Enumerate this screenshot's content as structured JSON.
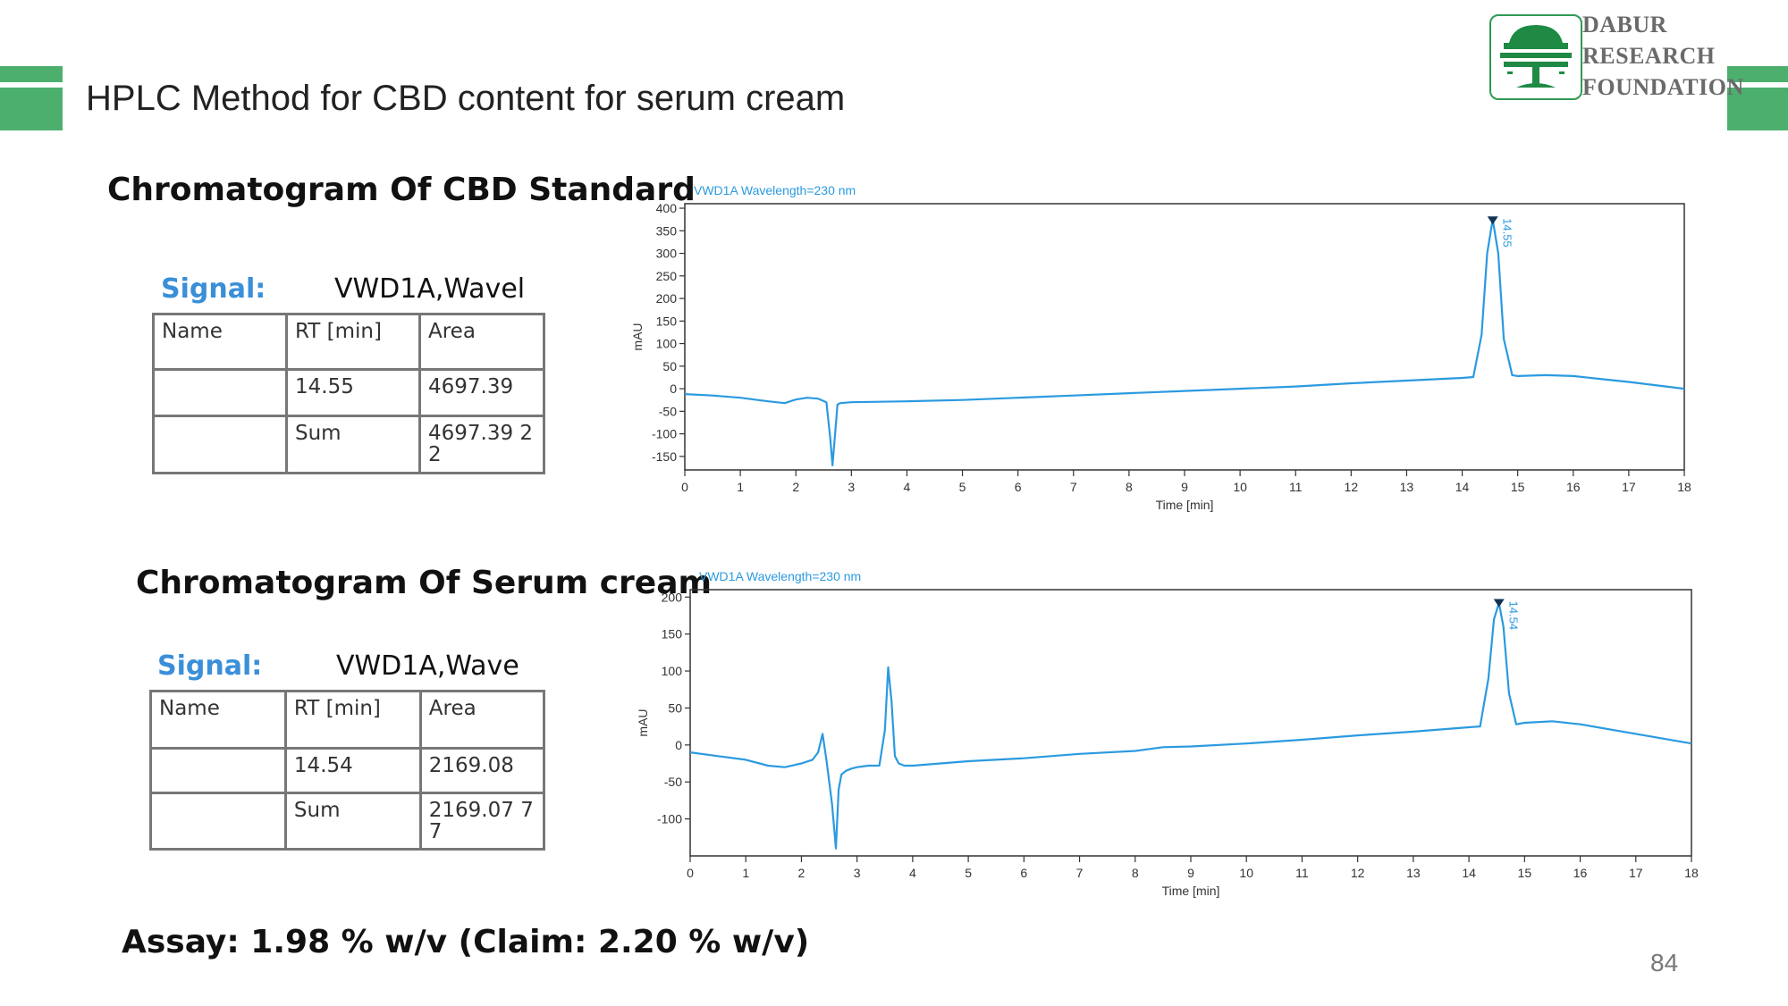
{
  "slide": {
    "title": "HPLC Method for CBD content for serum cream",
    "page_number": "84",
    "assay_text": "Assay: 1.98 % w/v  (Claim: 2.20 % w/v)",
    "accent_color": "#4caf6e"
  },
  "logo": {
    "line1": "DABUR",
    "line2": "RESEARCH",
    "line3": "FOUNDATION",
    "icon": "tree-logo-icon",
    "color": "#1e8a44"
  },
  "standard": {
    "heading": "Chromatogram Of CBD Standard",
    "signal_label": "Signal:",
    "signal_value": "VWD1A,Wavel",
    "table": {
      "headers": [
        "Name",
        "RT [min]",
        "Area"
      ],
      "rows": [
        [
          "",
          "14.55",
          "4697.39"
        ],
        [
          "",
          "Sum",
          "4697.39 22"
        ]
      ]
    }
  },
  "serum": {
    "heading": "Chromatogram Of Serum cream",
    "signal_label": "Signal:",
    "signal_value": "VWD1A,Wave",
    "table": {
      "headers": [
        "Name",
        "RT [min]",
        "Area"
      ],
      "rows": [
        [
          "",
          "14.54",
          "2169.08"
        ],
        [
          "",
          "Sum",
          "2169.07 77"
        ]
      ]
    }
  },
  "chart_data": [
    {
      "type": "line",
      "title": "VWD1A Wavelength=230 nm",
      "xlabel": "Time [min]",
      "ylabel": "mAU",
      "xlim": [
        0,
        18
      ],
      "ylim": [
        -180,
        410
      ],
      "xticks": [
        0,
        1,
        2,
        3,
        4,
        5,
        6,
        7,
        8,
        9,
        10,
        11,
        12,
        13,
        14,
        15,
        16,
        17,
        18
      ],
      "yticks": [
        -150,
        -100,
        -50,
        0,
        50,
        100,
        150,
        200,
        250,
        300,
        350,
        400
      ],
      "peak_label": "14.55",
      "peak_marker": {
        "x": 14.55,
        "y": 370
      },
      "line_color": "#2b9ae0",
      "series": [
        {
          "x": [
            0,
            0.5,
            1.0,
            1.5,
            1.8,
            2.0,
            2.2,
            2.4,
            2.55,
            2.62,
            2.66,
            2.7,
            2.75,
            2.8,
            3.0,
            4.0,
            5.0,
            6.0,
            7.0,
            8.0,
            9.0,
            10.0,
            11.0,
            12.0,
            13.0,
            14.0,
            14.2,
            14.35,
            14.45,
            14.55,
            14.65,
            14.75,
            14.9,
            15.0,
            15.5,
            16.0,
            17.0,
            18.0
          ],
          "y": [
            -12,
            -15,
            -20,
            -28,
            -32,
            -24,
            -20,
            -22,
            -30,
            -110,
            -170,
            -110,
            -35,
            -32,
            -30,
            -28,
            -25,
            -20,
            -15,
            -10,
            -5,
            0,
            5,
            12,
            18,
            24,
            26,
            120,
            300,
            375,
            300,
            110,
            30,
            28,
            30,
            28,
            15,
            0
          ]
        }
      ]
    },
    {
      "type": "line",
      "title": "VWD1A Wavelength=230 nm",
      "xlabel": "Time [min]",
      "ylabel": "mAU",
      "xlim": [
        0,
        18
      ],
      "ylim": [
        -150,
        210
      ],
      "xticks": [
        0,
        1,
        2,
        3,
        4,
        5,
        6,
        7,
        8,
        9,
        10,
        11,
        12,
        13,
        14,
        15,
        16,
        17,
        18
      ],
      "yticks": [
        -100,
        -50,
        0,
        50,
        100,
        150,
        200
      ],
      "peak_label": "14.54",
      "peak_marker": {
        "x": 14.54,
        "y": 190
      },
      "line_color": "#2b9ae0",
      "series": [
        {
          "x": [
            0,
            0.5,
            1.0,
            1.4,
            1.7,
            2.0,
            2.2,
            2.3,
            2.38,
            2.45,
            2.55,
            2.62,
            2.67,
            2.72,
            2.8,
            2.9,
            3.0,
            3.2,
            3.4,
            3.5,
            3.56,
            3.62,
            3.68,
            3.75,
            3.85,
            4.0,
            5.0,
            6.0,
            7.0,
            8.0,
            8.5,
            9.0,
            10.0,
            11.0,
            12.0,
            13.0,
            14.0,
            14.2,
            14.35,
            14.45,
            14.54,
            14.62,
            14.72,
            14.85,
            15.0,
            15.5,
            16.0,
            17.0,
            18.0
          ],
          "y": [
            -10,
            -15,
            -20,
            -28,
            -30,
            -25,
            -20,
            -10,
            15,
            -20,
            -80,
            -140,
            -60,
            -40,
            -35,
            -32,
            -30,
            -28,
            -28,
            20,
            105,
            60,
            -15,
            -25,
            -28,
            -28,
            -22,
            -18,
            -12,
            -8,
            -3,
            -2,
            2,
            7,
            13,
            18,
            24,
            25,
            90,
            170,
            192,
            160,
            70,
            28,
            30,
            32,
            28,
            15,
            2
          ]
        }
      ]
    }
  ]
}
